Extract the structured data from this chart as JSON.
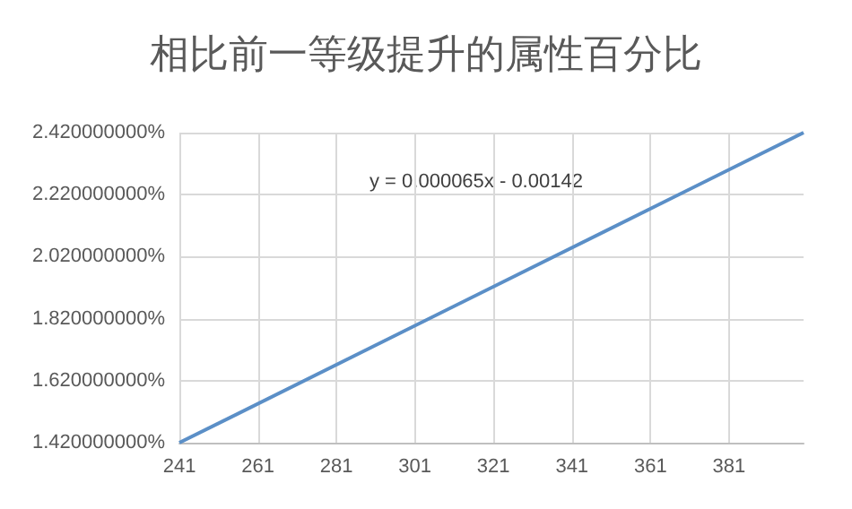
{
  "chart_data": {
    "type": "line",
    "title": "相比前一等级提升的属性百分比",
    "x": [
      241,
      400
    ],
    "series": [
      {
        "color": "#5b8fc7",
        "values": [
          1.42,
          2.42
        ]
      }
    ],
    "xlim": [
      241,
      400
    ],
    "xticks": [
      241,
      261,
      281,
      301,
      321,
      341,
      361,
      381
    ],
    "ylim": [
      1.42,
      2.42
    ],
    "yticks": [
      {
        "value": 1.42,
        "label": "1.420000000%"
      },
      {
        "value": 1.62,
        "label": "1.620000000%"
      },
      {
        "value": 1.82,
        "label": "1.820000000%"
      },
      {
        "value": 2.02,
        "label": "2.020000000%"
      },
      {
        "value": 2.22,
        "label": "2.220000000%"
      },
      {
        "value": 2.42,
        "label": "2.420000000%"
      }
    ],
    "annotations": [
      "y = 0.000065x - 0.00142"
    ],
    "grid": true,
    "marker": "none",
    "line_style": "solid"
  }
}
